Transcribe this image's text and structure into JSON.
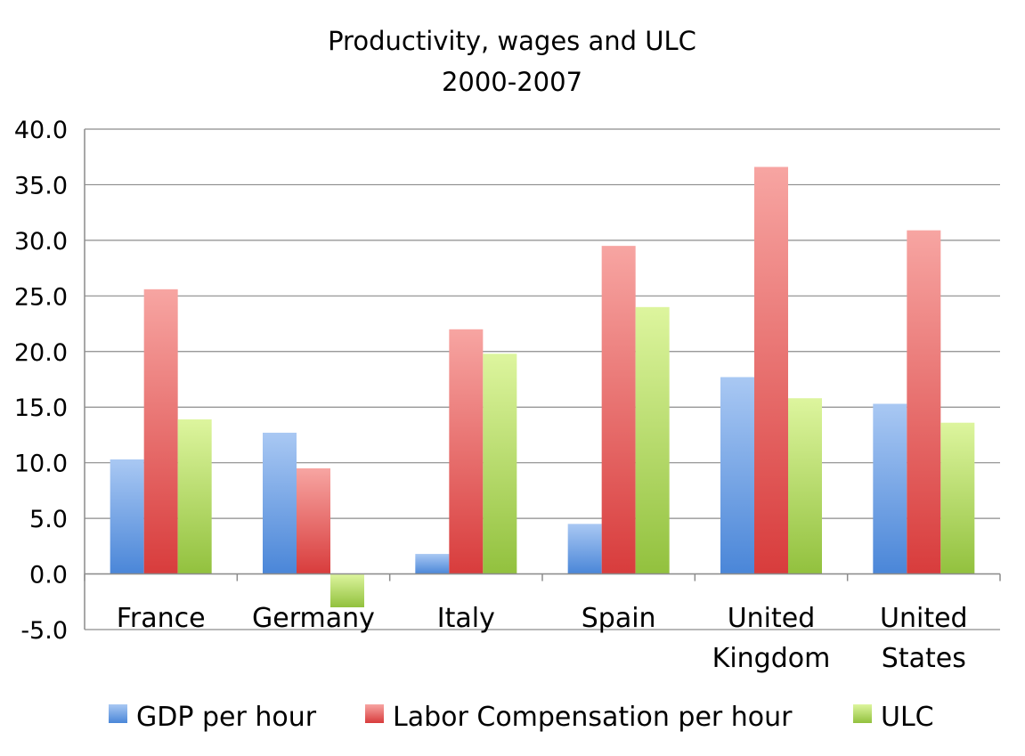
{
  "chart_data": {
    "type": "bar",
    "title": "Productivity, wages and ULC",
    "subtitle": "2000-2007",
    "categories": [
      [
        "France"
      ],
      [
        "Germany"
      ],
      [
        "Italy"
      ],
      [
        "Spain"
      ],
      [
        "United",
        "Kingdom"
      ],
      [
        "United",
        "States"
      ]
    ],
    "series": [
      {
        "name": "GDP per hour",
        "color": "#4a86d8",
        "color_light": "#a9c8f3",
        "values": [
          10.3,
          12.7,
          1.8,
          4.5,
          17.7,
          15.3
        ]
      },
      {
        "name": "Labor Compensation per hour",
        "color": "#d83c3c",
        "color_light": "#f7a5a2",
        "values": [
          25.6,
          9.5,
          22.0,
          29.5,
          36.6,
          30.9
        ]
      },
      {
        "name": "ULC",
        "color": "#92c13e",
        "color_light": "#ddf59e",
        "values": [
          13.9,
          -3.0,
          19.8,
          24.0,
          15.8,
          13.6
        ]
      }
    ],
    "ylim": [
      -5.0,
      40.0
    ],
    "yticks": [
      "40.0",
      "35.0",
      "30.0",
      "25.0",
      "20.0",
      "15.0",
      "10.0",
      "5.0",
      "0.0",
      "-5.0"
    ],
    "xlabel": "",
    "ylabel": "",
    "grid": true,
    "legend_position": "bottom"
  }
}
